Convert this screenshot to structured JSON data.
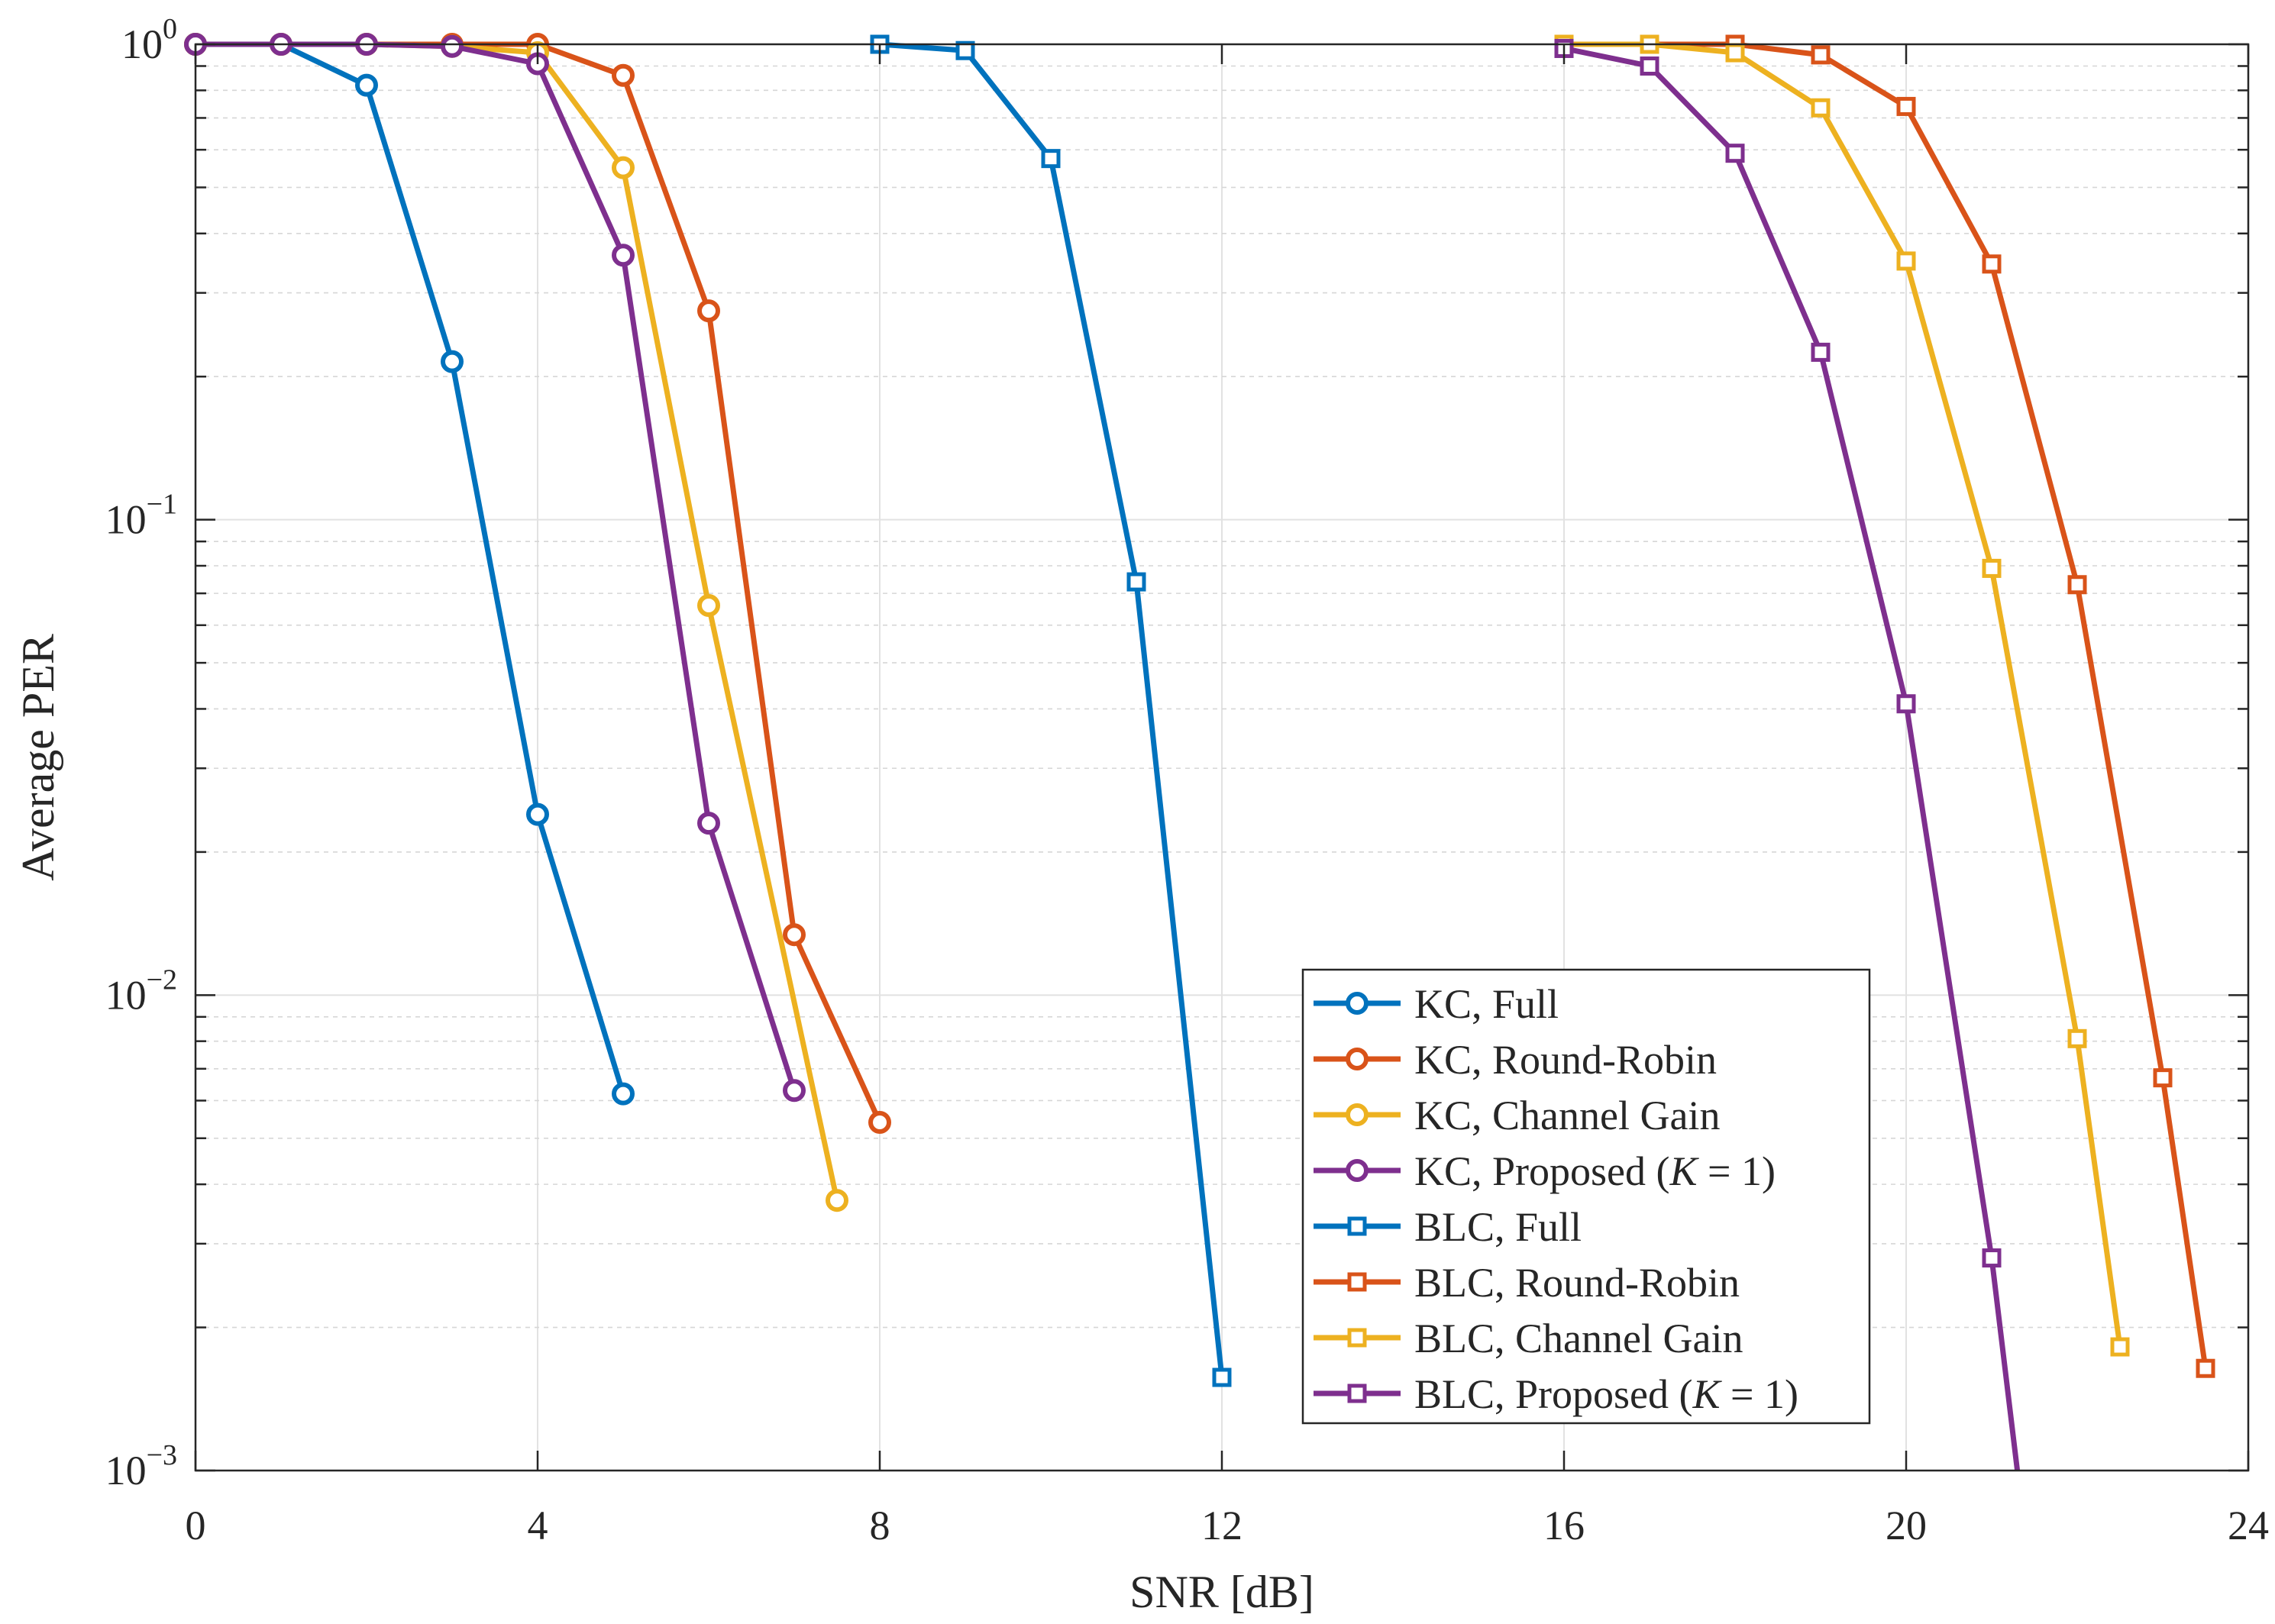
{
  "chart_data": {
    "type": "line",
    "yscale": "log",
    "xlabel": "SNR [dB]",
    "ylabel": "Average PER",
    "xlim": [
      0,
      24
    ],
    "ylim": [
      0.001,
      1
    ],
    "xticks": [
      0,
      4,
      8,
      12,
      16,
      20,
      24
    ],
    "xtick_labels": [
      "0",
      "4",
      "8",
      "12",
      "16",
      "20",
      "24"
    ],
    "yticks": [
      {
        "value": 1,
        "base": "10",
        "exp": "0"
      },
      {
        "value": 0.1,
        "base": "10",
        "exp": "−1"
      },
      {
        "value": 0.01,
        "base": "10",
        "exp": "−2"
      },
      {
        "value": 0.001,
        "base": "10",
        "exp": "−3"
      }
    ],
    "grid": true,
    "legend_position": "bottom-right",
    "series": [
      {
        "name": "KC, Full",
        "label_prefix": "KC, Full",
        "color": "#0072BD",
        "marker": "circle",
        "x": [
          0,
          1,
          2,
          3,
          4,
          5
        ],
        "y": [
          1.0,
          1.0,
          0.82,
          0.215,
          0.024,
          0.0062
        ]
      },
      {
        "name": "KC, Round-Robin",
        "label_prefix": "KC, Round-Robin",
        "color": "#D95319",
        "marker": "circle",
        "x": [
          0,
          1,
          2,
          3,
          4,
          5,
          6,
          7,
          8
        ],
        "y": [
          1.0,
          1.0,
          1.0,
          1.0,
          1.0,
          0.86,
          0.275,
          0.0134,
          0.0054
        ]
      },
      {
        "name": "KC, Channel Gain",
        "label_prefix": "KC, Channel Gain",
        "color": "#EDB120",
        "marker": "circle",
        "x": [
          0,
          1,
          2,
          3,
          4,
          5,
          6,
          7.5
        ],
        "y": [
          1.0,
          1.0,
          1.0,
          0.99,
          0.96,
          0.55,
          0.066,
          0.0037
        ]
      },
      {
        "name": "KC, Proposed (K = 1)",
        "label_prefix": "KC, Proposed (",
        "label_var": "K",
        "label_suffix": " = 1)",
        "color": "#7E2F8E",
        "marker": "circle",
        "x": [
          0,
          1,
          2,
          3,
          4,
          5,
          6,
          7
        ],
        "y": [
          1.0,
          1.0,
          1.0,
          0.99,
          0.91,
          0.36,
          0.023,
          0.0063
        ]
      },
      {
        "name": "BLC, Full",
        "label_prefix": "BLC, Full",
        "color": "#0072BD",
        "marker": "square",
        "x": [
          8,
          9,
          10,
          11,
          12
        ],
        "y": [
          1.0,
          0.97,
          0.575,
          0.074,
          0.00157
        ]
      },
      {
        "name": "BLC, Round-Robin",
        "label_prefix": "BLC, Round-Robin",
        "color": "#D95319",
        "marker": "square",
        "x": [
          16,
          17,
          18,
          19,
          20,
          21,
          22,
          23,
          23.5
        ],
        "y": [
          1.0,
          1.0,
          1.0,
          0.95,
          0.74,
          0.345,
          0.073,
          0.0067,
          0.00164
        ]
      },
      {
        "name": "BLC, Channel Gain",
        "label_prefix": "BLC, Channel Gain",
        "color": "#EDB120",
        "marker": "square",
        "x": [
          16,
          17,
          18,
          19,
          20,
          21,
          22,
          22.5
        ],
        "y": [
          1.0,
          1.0,
          0.96,
          0.735,
          0.35,
          0.079,
          0.0081,
          0.00182
        ]
      },
      {
        "name": "BLC, Proposed (K = 1)",
        "label_prefix": "BLC, Proposed (",
        "label_var": "K",
        "label_suffix": " = 1)",
        "color": "#7E2F8E",
        "marker": "square",
        "x": [
          16,
          17,
          18,
          19,
          20,
          21
        ],
        "y": [
          0.98,
          0.9,
          0.59,
          0.225,
          0.041,
          0.0028
        ],
        "tail_to": {
          "x": 21.3,
          "y": 0.001
        }
      }
    ]
  }
}
